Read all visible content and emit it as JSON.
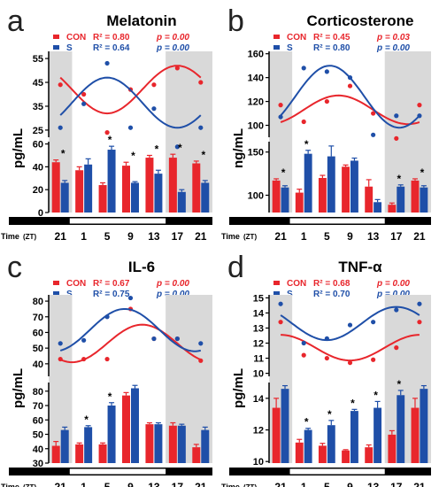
{
  "colors": {
    "con": "#e8262c",
    "s": "#1f4fa8",
    "shade": "#d9d9d9",
    "zt_bar": "#000000"
  },
  "chart_data": [
    {
      "panel_letter": "a",
      "title": "Melatonin",
      "type": "line+bar",
      "ylabel": "pg/mL",
      "ylabel_clipped": "pg/mL",
      "x_axis_label": "Time",
      "x_axis_unit": "(ZT)",
      "categories": [
        "21",
        "1",
        "5",
        "9",
        "13",
        "17",
        "21"
      ],
      "light_dark": [
        "dark",
        "light",
        "light",
        "light",
        "light",
        "dark",
        "dark"
      ],
      "legend": [
        {
          "group": "CON",
          "r2": "R² = 0.80",
          "p": "p = 0.00"
        },
        {
          "group": "S",
          "r2": "R² = 0.64",
          "p": "p = 0.00"
        }
      ],
      "top": {
        "ylim": [
          22,
          58
        ],
        "yticks": [
          25,
          35,
          45,
          55
        ],
        "fit": {
          "con": {
            "mesor": 42,
            "amp": 10,
            "peak_zt": 17
          },
          "s": {
            "mesor": 36.5,
            "amp": 10.5,
            "peak_zt": 5
          }
        },
        "points": {
          "con": [
            44,
            40,
            24,
            42,
            44,
            51,
            45
          ],
          "s": [
            26,
            36,
            53,
            26,
            34,
            18,
            26
          ]
        }
      },
      "bottom": {
        "ylim": [
          0,
          62
        ],
        "yticks": [
          0,
          20,
          40,
          60
        ],
        "series": [
          {
            "name": "CON",
            "values": [
              44,
              37,
              24,
              41,
              48,
              48,
              43
            ],
            "err": [
              2,
              3,
              2,
              3,
              2,
              3,
              2
            ]
          },
          {
            "name": "S",
            "values": [
              26,
              42,
              55,
              26,
              34,
              18,
              26
            ],
            "err": [
              2,
              5,
              3,
              1,
              3,
              2,
              2
            ]
          }
        ],
        "stars": [
          true,
          false,
          true,
          true,
          true,
          true,
          true
        ],
        "star_label": "*"
      }
    },
    {
      "panel_letter": "b",
      "title": "Corticosterone",
      "type": "line+bar",
      "ylabel": "ng/mL",
      "x_axis_label": "Time",
      "x_axis_unit": "(ZT)",
      "categories": [
        "21",
        "1",
        "5",
        "9",
        "13",
        "17",
        "21"
      ],
      "light_dark": [
        "dark",
        "light",
        "light",
        "light",
        "light",
        "dark",
        "dark"
      ],
      "legend": [
        {
          "group": "CON",
          "r2": "R² = 0.45",
          "p": "p = 0.03"
        },
        {
          "group": "S",
          "r2": "R² = 0.80",
          "p": "p = 0.00"
        }
      ],
      "top": {
        "ylim": [
          90,
          162
        ],
        "yticks": [
          100,
          120,
          140,
          160
        ],
        "fit": {
          "con": {
            "mesor": 113,
            "amp": 12,
            "peak_zt": 7
          },
          "s": {
            "mesor": 124,
            "amp": 26,
            "peak_zt": 5.5
          }
        },
        "points": {
          "con": [
            117,
            103,
            120,
            133,
            110,
            89,
            117
          ],
          "s": [
            107,
            148,
            145,
            140,
            92,
            108,
            108
          ]
        }
      },
      "bottom": {
        "ylim": [
          80,
          162
        ],
        "yticks": [
          100,
          150
        ],
        "series": [
          {
            "name": "CON",
            "values": [
              117,
              103,
              120,
              133,
              110,
              89,
              117
            ],
            "err": [
              2,
              4,
              3,
              2,
              8,
              2,
              2
            ]
          },
          {
            "name": "S",
            "values": [
              109,
              148,
              145,
              140,
              92,
              110,
              109
            ],
            "err": [
              2,
              4,
              12,
              3,
              3,
              2,
              2
            ]
          }
        ],
        "stars": [
          true,
          true,
          false,
          false,
          false,
          true,
          true
        ],
        "star_label": "*"
      }
    },
    {
      "panel_letter": "c",
      "title": "IL-6",
      "type": "line+bar",
      "ylabel": "pg/mL",
      "x_axis_label": "Time",
      "x_axis_unit": "(ZT)",
      "categories": [
        "21",
        "1",
        "5",
        "9",
        "13",
        "17",
        "21"
      ],
      "light_dark": [
        "dark",
        "light",
        "light",
        "light",
        "light",
        "dark",
        "dark"
      ],
      "legend": [
        {
          "group": "CON",
          "r2": "R² = 0.67",
          "p": "p = 0.00"
        },
        {
          "group": "S",
          "r2": "R² = 0.75",
          "p": "p = 0.00"
        }
      ],
      "top": {
        "ylim": [
          32,
          84
        ],
        "yticks": [
          40,
          50,
          60,
          70,
          80
        ],
        "fit": {
          "con": {
            "mesor": 53,
            "amp": 12,
            "peak_zt": 11
          },
          "s": {
            "mesor": 61.5,
            "amp": 13.5,
            "peak_zt": 8
          }
        },
        "points": {
          "con": [
            43,
            43,
            43,
            75,
            56,
            56,
            42
          ],
          "s": [
            53,
            55,
            70,
            82,
            56,
            56,
            53
          ]
        }
      },
      "bottom": {
        "ylim": [
          30,
          86
        ],
        "yticks": [
          30,
          40,
          50,
          60,
          70,
          80
        ],
        "series": [
          {
            "name": "CON",
            "values": [
              42,
              43,
              43,
              77,
              57,
              56,
              41
            ],
            "err": [
              3,
              1,
              1,
              2,
              1,
              2,
              2
            ]
          },
          {
            "name": "S",
            "values": [
              53,
              55,
              70,
              82,
              57,
              56,
              53
            ],
            "err": [
              2,
              1,
              2,
              2,
              1,
              1,
              2
            ]
          }
        ],
        "stars": [
          false,
          true,
          true,
          false,
          false,
          false,
          false
        ],
        "star_label": "*"
      }
    },
    {
      "panel_letter": "d",
      "title": "TNF-α",
      "type": "line+bar",
      "ylabel": "pg/mL",
      "x_axis_label": "Time",
      "x_axis_unit": "(ZT)",
      "categories": [
        "21",
        "1",
        "5",
        "9",
        "13",
        "17",
        "21"
      ],
      "light_dark": [
        "dark",
        "light",
        "light",
        "light",
        "light",
        "dark",
        "dark"
      ],
      "legend": [
        {
          "group": "CON",
          "r2": "R² = 0.68",
          "p": "p = 0.00"
        },
        {
          "group": "S",
          "r2": "R² = 0.70",
          "p": "p = 0.00"
        }
      ],
      "top": {
        "ylim": [
          9.8,
          15.2
        ],
        "yticks": [
          10,
          11,
          12,
          13,
          14,
          15
        ],
        "fit": {
          "con": {
            "mesor": 11.7,
            "amp": 0.85,
            "peak_zt": 21
          },
          "s": {
            "mesor": 13.3,
            "amp": 1.1,
            "peak_zt": 17
          }
        },
        "points": {
          "con": [
            13.4,
            11.2,
            11.0,
            10.7,
            10.9,
            11.7,
            13.4
          ],
          "s": [
            14.6,
            12.0,
            12.3,
            13.2,
            13.4,
            14.2,
            14.6
          ]
        }
      },
      "bottom": {
        "ylim": [
          9.9,
          15
        ],
        "yticks": [
          10,
          12,
          14
        ],
        "series": [
          {
            "name": "CON",
            "values": [
              13.4,
              11.2,
              11.0,
              10.7,
              10.9,
              11.7,
              13.4
            ],
            "err": [
              0.6,
              0.2,
              0.15,
              0.05,
              0.15,
              0.25,
              0.6
            ]
          },
          {
            "name": "S",
            "values": [
              14.6,
              12.0,
              12.3,
              13.2,
              13.4,
              14.2,
              14.6
            ],
            "err": [
              0.2,
              0.1,
              0.3,
              0.1,
              0.4,
              0.3,
              0.2
            ]
          }
        ],
        "stars": [
          false,
          true,
          true,
          true,
          true,
          true,
          false
        ],
        "star_label": "*"
      }
    }
  ]
}
